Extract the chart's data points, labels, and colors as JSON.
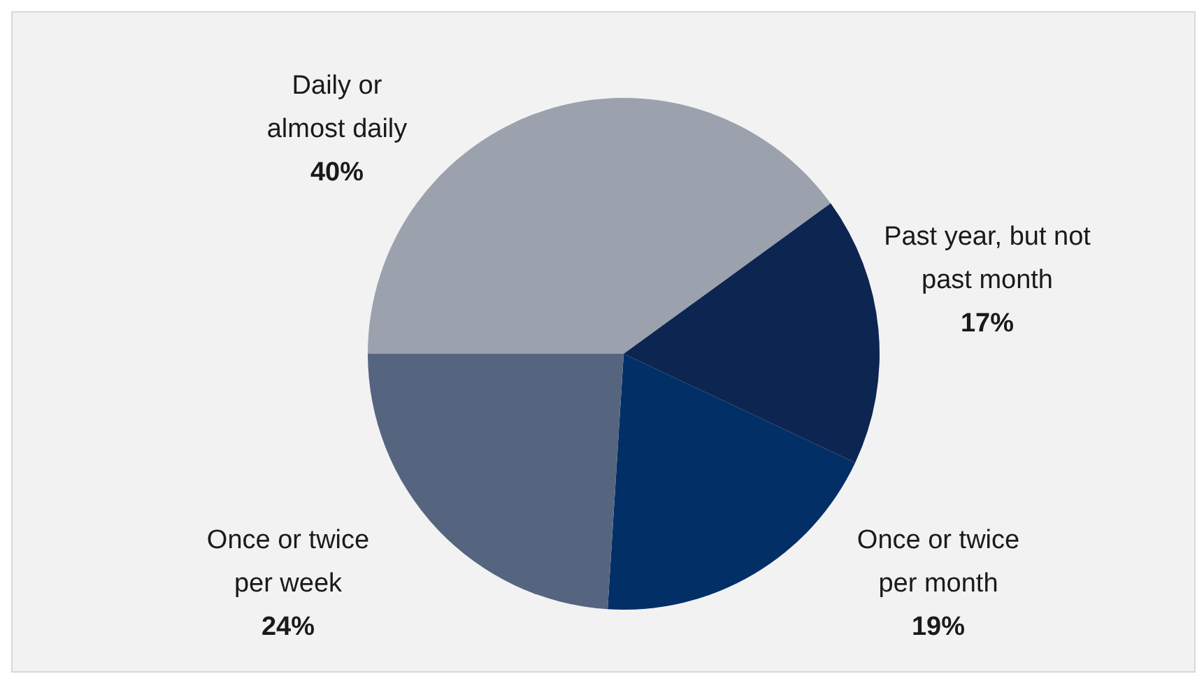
{
  "chart_data": {
    "type": "pie",
    "categories": [
      "Daily or almost daily",
      "Past year, but not past month",
      "Once or twice per month",
      "Once or twice per week"
    ],
    "values": [
      40,
      17,
      19,
      24
    ],
    "colors": [
      "#9ba2ae",
      "#0c2551",
      "#022f66",
      "#556580"
    ],
    "value_labels": [
      "40%",
      "17%",
      "19%",
      "24%"
    ]
  }
}
